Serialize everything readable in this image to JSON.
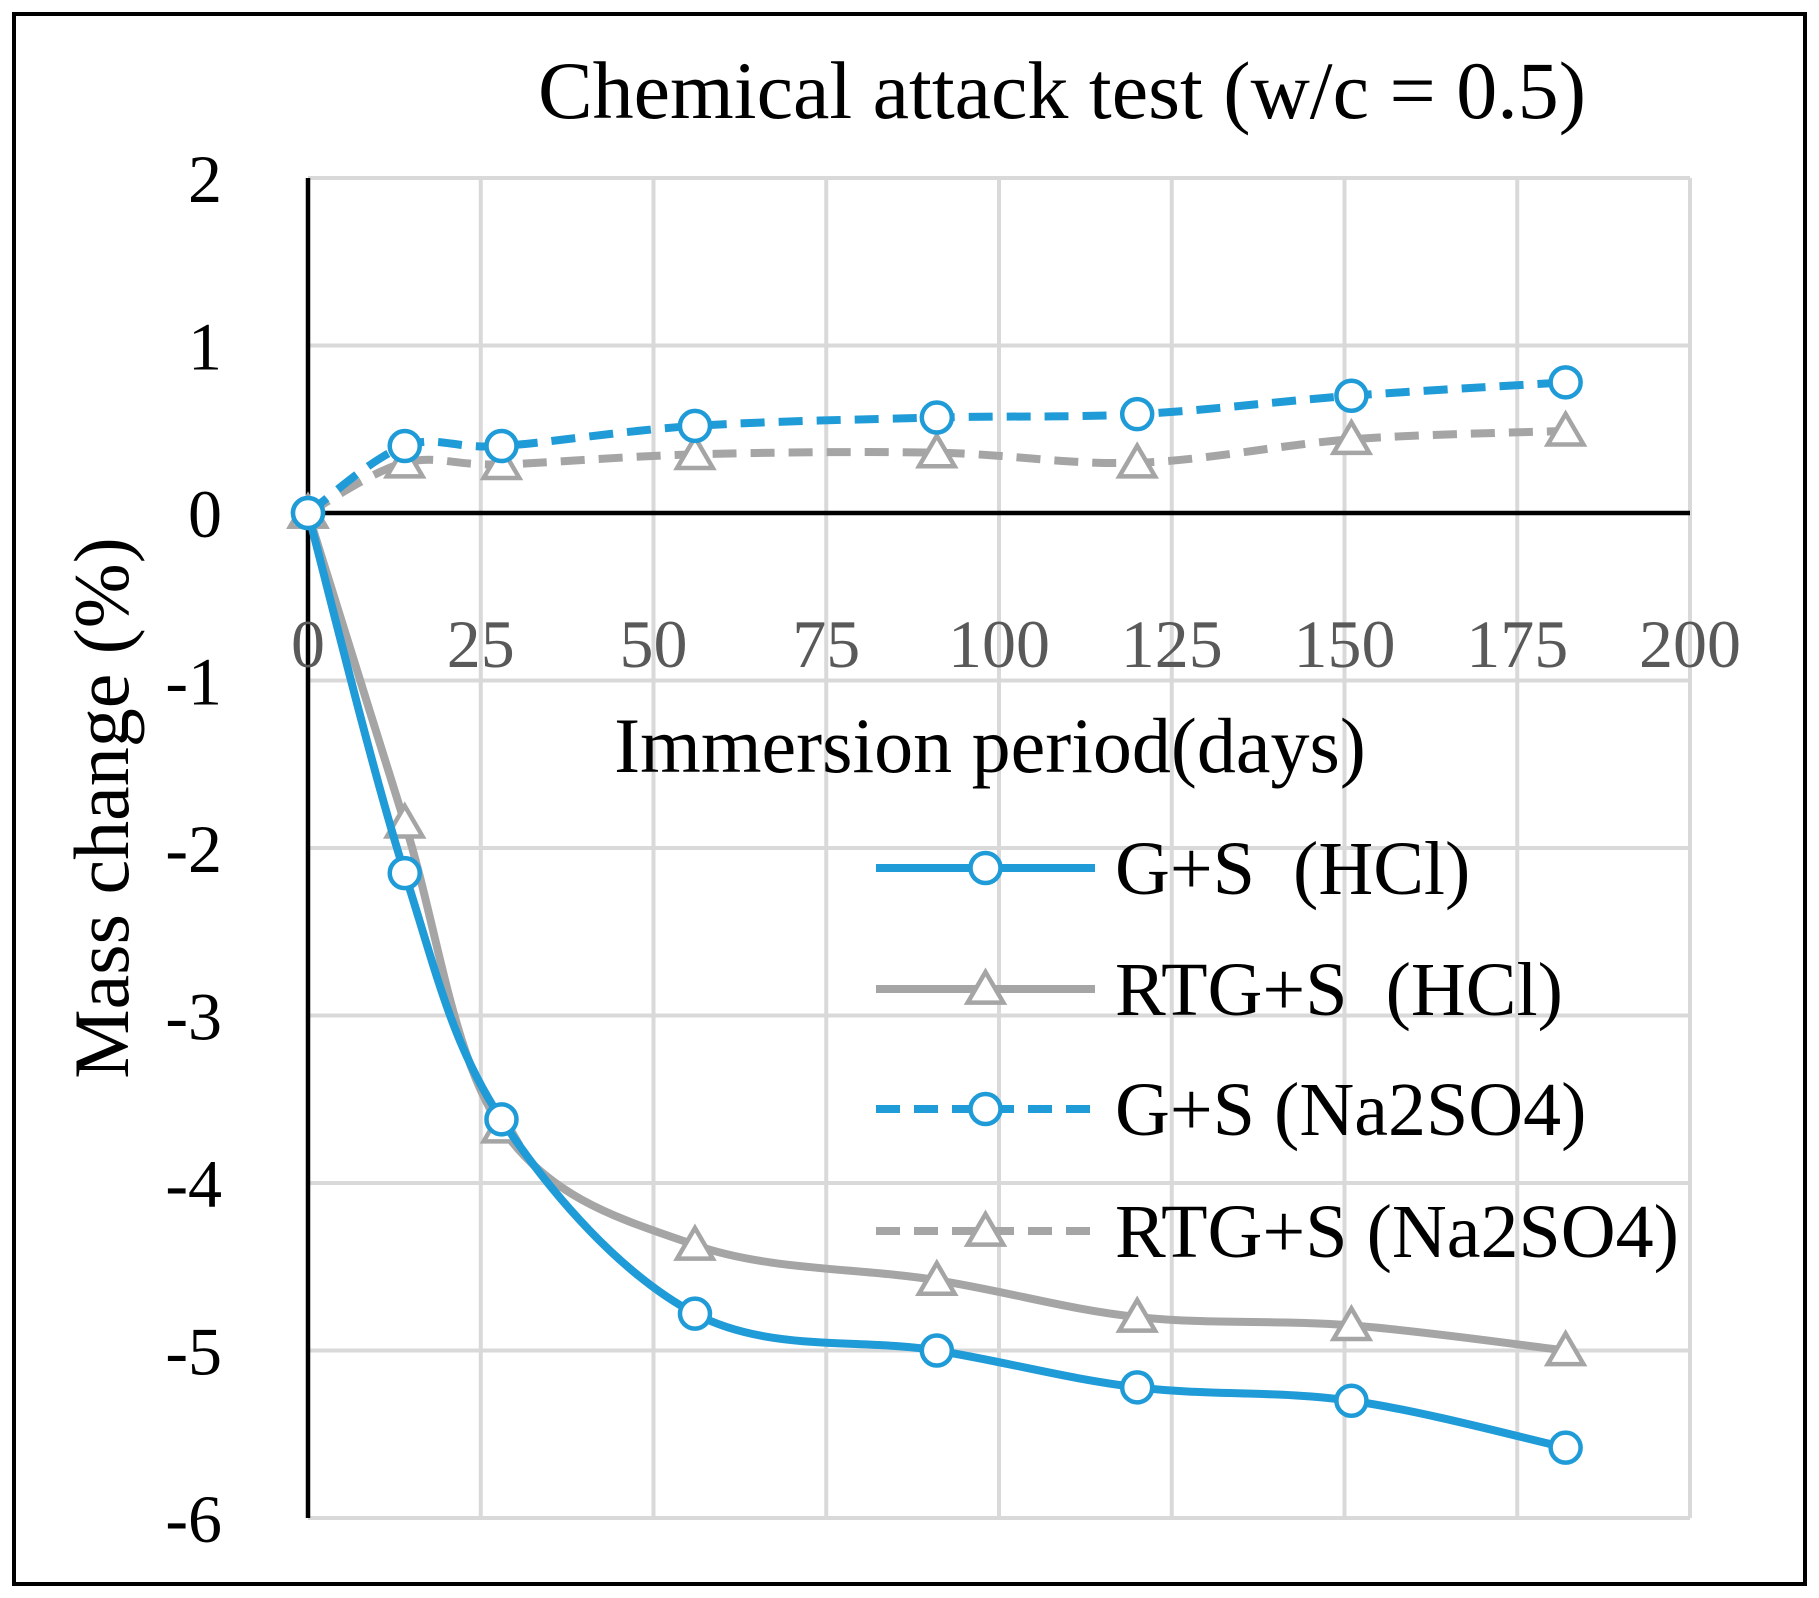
{
  "chart_data": {
    "type": "line",
    "title": "Chemical attack test (w/c = 0.5)",
    "xlabel": "Immersion period(days)",
    "ylabel": "Mass change (%)",
    "xlim": [
      0,
      200
    ],
    "ylim": [
      -6,
      2
    ],
    "xticks": [
      0,
      25,
      50,
      75,
      100,
      125,
      150,
      175,
      200
    ],
    "yticks": [
      2,
      1,
      0,
      -1,
      -2,
      -3,
      -4,
      -5,
      -6
    ],
    "xtick_labels": [
      "0",
      "25",
      "50",
      "75",
      "100",
      "125",
      "150",
      "175",
      "200"
    ],
    "ytick_labels": [
      "2",
      "1",
      "0",
      "-1",
      "-2",
      "-3",
      "-4",
      "-5",
      "-6"
    ],
    "grid": true,
    "legend_position": "lower-right",
    "series": [
      {
        "name": "G+S  (HCl)",
        "color": "#1f9bd7",
        "dash": "solid",
        "marker": "circle",
        "x": [
          0,
          14,
          28,
          56,
          91,
          120,
          151,
          182
        ],
        "y": [
          0,
          -2.15,
          -3.62,
          -4.78,
          -5.0,
          -5.22,
          -5.3,
          -5.58
        ]
      },
      {
        "name": "RTG+S  (HCl)",
        "color": "#a5a5a5",
        "dash": "solid",
        "marker": "triangle",
        "x": [
          0,
          14,
          28,
          56,
          91,
          120,
          151,
          182
        ],
        "y": [
          0,
          -1.85,
          -3.67,
          -4.37,
          -4.58,
          -4.8,
          -4.85,
          -5.0
        ]
      },
      {
        "name": "G+S (Na2SO4)",
        "color": "#1f9bd7",
        "dash": "dashed",
        "marker": "circle",
        "x": [
          0,
          14,
          28,
          56,
          91,
          120,
          151,
          182
        ],
        "y": [
          0,
          0.4,
          0.4,
          0.52,
          0.57,
          0.59,
          0.7,
          0.78
        ]
      },
      {
        "name": "RTG+S (Na2SO4)",
        "color": "#a5a5a5",
        "dash": "dashed",
        "marker": "triangle",
        "x": [
          0,
          14,
          28,
          56,
          91,
          120,
          151,
          182
        ],
        "y": [
          0,
          0.3,
          0.29,
          0.35,
          0.36,
          0.3,
          0.44,
          0.49
        ]
      }
    ]
  }
}
